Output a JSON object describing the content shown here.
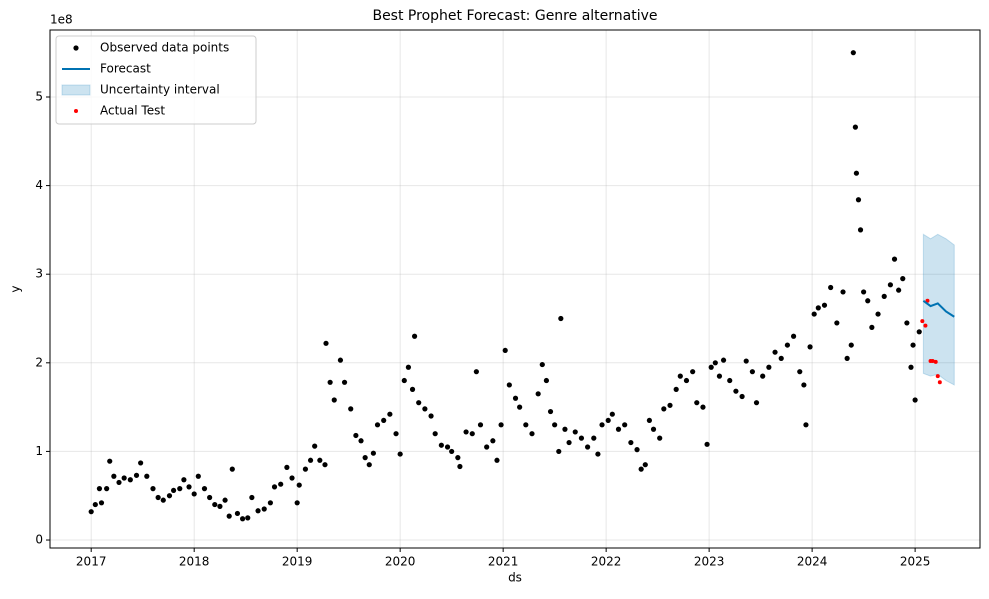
{
  "chart_data": {
    "type": "scatter",
    "title": "Best Prophet Forecast: Genre alternative",
    "x_label": "ds",
    "y_label": "y",
    "y_offset_label": "1e8",
    "xlim": [
      2016.6,
      2025.63
    ],
    "ylim": [
      -0.09,
      5.756
    ],
    "xticks": [
      2017,
      2018,
      2019,
      2020,
      2021,
      2022,
      2023,
      2024,
      2025
    ],
    "yticks": [
      0,
      1,
      2,
      3,
      4,
      5
    ],
    "grid": true,
    "legend_position": "upper-left",
    "series": [
      {
        "name": "Observed data points",
        "mark": "scatter",
        "color": "#000000",
        "x": [
          2017.0,
          2017.04,
          2017.08,
          2017.1,
          2017.15,
          2017.18,
          2017.22,
          2017.27,
          2017.32,
          2017.38,
          2017.44,
          2017.48,
          2017.54,
          2017.6,
          2017.65,
          2017.7,
          2017.76,
          2017.8,
          2017.86,
          2017.9,
          2017.95,
          2018.0,
          2018.04,
          2018.1,
          2018.15,
          2018.2,
          2018.25,
          2018.3,
          2018.34,
          2018.37,
          2018.42,
          2018.47,
          2018.52,
          2018.56,
          2018.62,
          2018.68,
          2018.74,
          2018.78,
          2018.84,
          2018.9,
          2018.95,
          2019.0,
          2019.02,
          2019.08,
          2019.13,
          2019.17,
          2019.22,
          2019.27,
          2019.28,
          2019.32,
          2019.36,
          2019.42,
          2019.46,
          2019.52,
          2019.57,
          2019.62,
          2019.66,
          2019.7,
          2019.74,
          2019.78,
          2019.84,
          2019.9,
          2019.96,
          2020.0,
          2020.04,
          2020.08,
          2020.12,
          2020.14,
          2020.18,
          2020.24,
          2020.3,
          2020.34,
          2020.4,
          2020.46,
          2020.5,
          2020.56,
          2020.58,
          2020.64,
          2020.7,
          2020.74,
          2020.78,
          2020.84,
          2020.9,
          2020.94,
          2020.98,
          2021.02,
          2021.06,
          2021.12,
          2021.16,
          2021.22,
          2021.28,
          2021.34,
          2021.38,
          2021.42,
          2021.46,
          2021.5,
          2021.54,
          2021.56,
          2021.6,
          2021.64,
          2021.7,
          2021.76,
          2021.82,
          2021.88,
          2021.92,
          2021.96,
          2022.02,
          2022.06,
          2022.12,
          2022.18,
          2022.24,
          2022.3,
          2022.34,
          2022.38,
          2022.42,
          2022.46,
          2022.52,
          2022.56,
          2022.62,
          2022.68,
          2022.72,
          2022.78,
          2022.84,
          2022.88,
          2022.94,
          2022.98,
          2023.02,
          2023.06,
          2023.1,
          2023.14,
          2023.2,
          2023.26,
          2023.32,
          2023.36,
          2023.42,
          2023.46,
          2023.52,
          2023.58,
          2023.64,
          2023.7,
          2023.76,
          2023.82,
          2023.88,
          2023.92,
          2023.94,
          2023.98,
          2024.02,
          2024.06,
          2024.12,
          2024.18,
          2024.24,
          2024.3,
          2024.34,
          2024.38,
          2024.4,
          2024.42,
          2024.43,
          2024.45,
          2024.47,
          2024.5,
          2024.54,
          2024.58,
          2024.64,
          2024.7,
          2024.76,
          2024.8,
          2024.84,
          2024.88,
          2024.92,
          2024.96,
          2024.98,
          2025.0,
          2025.04
        ],
        "values": [
          0.32,
          0.4,
          0.58,
          0.42,
          0.58,
          0.89,
          0.72,
          0.65,
          0.7,
          0.68,
          0.73,
          0.87,
          0.72,
          0.58,
          0.48,
          0.45,
          0.5,
          0.56,
          0.58,
          0.68,
          0.6,
          0.52,
          0.72,
          0.58,
          0.48,
          0.4,
          0.38,
          0.45,
          0.27,
          0.8,
          0.3,
          0.24,
          0.25,
          0.48,
          0.33,
          0.35,
          0.42,
          0.6,
          0.63,
          0.82,
          0.7,
          0.42,
          0.62,
          0.8,
          0.9,
          1.06,
          0.9,
          0.85,
          2.22,
          1.78,
          1.58,
          2.03,
          1.78,
          1.48,
          1.18,
          1.12,
          0.93,
          0.85,
          0.98,
          1.3,
          1.35,
          1.42,
          1.2,
          0.97,
          1.8,
          1.95,
          1.7,
          2.3,
          1.55,
          1.48,
          1.4,
          1.2,
          1.07,
          1.05,
          1.0,
          0.93,
          0.83,
          1.22,
          1.2,
          1.9,
          1.3,
          1.05,
          1.12,
          0.9,
          1.3,
          2.14,
          1.75,
          1.6,
          1.5,
          1.3,
          1.2,
          1.65,
          1.98,
          1.8,
          1.45,
          1.3,
          1.0,
          2.5,
          1.25,
          1.1,
          1.22,
          1.15,
          1.05,
          1.15,
          0.97,
          1.3,
          1.35,
          1.42,
          1.25,
          1.3,
          1.1,
          1.02,
          0.8,
          0.85,
          1.35,
          1.25,
          1.15,
          1.48,
          1.52,
          1.7,
          1.85,
          1.8,
          1.9,
          1.55,
          1.5,
          1.08,
          1.95,
          2.0,
          1.85,
          2.03,
          1.8,
          1.68,
          1.62,
          2.02,
          1.9,
          1.55,
          1.85,
          1.95,
          2.12,
          2.05,
          2.2,
          2.3,
          1.9,
          1.75,
          1.3,
          2.18,
          2.55,
          2.62,
          2.65,
          2.85,
          2.45,
          2.8,
          2.05,
          2.2,
          5.5,
          4.66,
          4.14,
          3.84,
          3.5,
          2.8,
          2.7,
          2.4,
          2.55,
          2.75,
          2.88,
          3.17,
          2.82,
          2.95,
          2.45,
          1.95,
          2.2,
          1.58,
          2.35
        ]
      },
      {
        "name": "Forecast",
        "mark": "line",
        "color": "#0072B2",
        "x": [
          2025.08,
          2025.15,
          2025.22,
          2025.3,
          2025.38
        ],
        "values": [
          2.7,
          2.64,
          2.67,
          2.58,
          2.52
        ]
      },
      {
        "name": "Uncertainty interval",
        "mark": "band",
        "color": "#0072B2",
        "x": [
          2025.08,
          2025.15,
          2025.22,
          2025.3,
          2025.38
        ],
        "upper": [
          3.45,
          3.4,
          3.45,
          3.4,
          3.33
        ],
        "lower": [
          1.88,
          1.85,
          1.87,
          1.8,
          1.75
        ]
      },
      {
        "name": "Actual Test",
        "mark": "scatter",
        "color": "#ff0000",
        "x": [
          2025.07,
          2025.1,
          2025.12,
          2025.15,
          2025.17,
          2025.2,
          2025.22,
          2025.24
        ],
        "values": [
          2.47,
          2.42,
          2.7,
          2.02,
          2.02,
          2.01,
          1.85,
          1.78
        ]
      }
    ]
  }
}
